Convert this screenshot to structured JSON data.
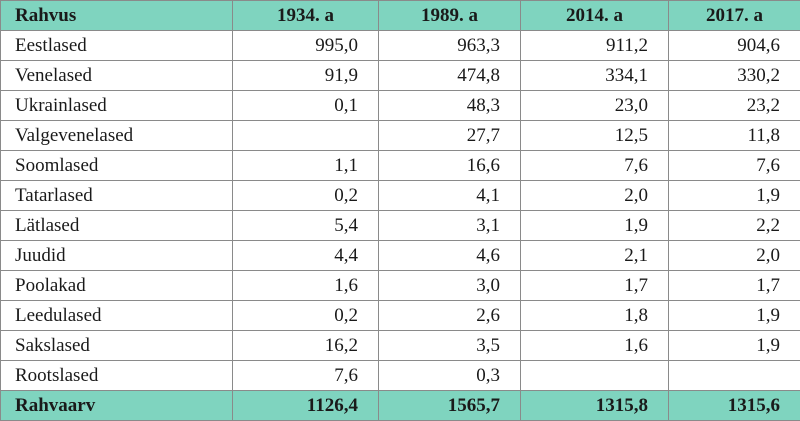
{
  "table": {
    "header": [
      "Rahvus",
      "1934. a",
      "1989. a",
      "2014. a",
      "2017. a"
    ],
    "rows": [
      [
        "Eestlased",
        "995,0",
        "963,3",
        "911,2",
        "904,6"
      ],
      [
        "Venelased",
        "91,9",
        "474,8",
        "334,1",
        "330,2"
      ],
      [
        "Ukrainlased",
        "0,1",
        "48,3",
        "23,0",
        "23,2"
      ],
      [
        "Valgevenelased",
        null,
        "27,7",
        "12,5",
        "11,8"
      ],
      [
        "Soomlased",
        "1,1",
        "16,6",
        "7,6",
        "7,6"
      ],
      [
        "Tatarlased",
        "0,2",
        "4,1",
        "2,0",
        "1,9"
      ],
      [
        "Lätlased",
        "5,4",
        "3,1",
        "1,9",
        "2,2"
      ],
      [
        "Juudid",
        "4,4",
        "4,6",
        "2,1",
        "2,0"
      ],
      [
        "Poolakad",
        "1,6",
        "3,0",
        "1,7",
        "1,7"
      ],
      [
        "Leedulased",
        "0,2",
        "2,6",
        "1,8",
        "1,9"
      ],
      [
        "Sakslased",
        "16,2",
        "3,5",
        "1,6",
        "1,9"
      ],
      [
        "Rootslased",
        "7,6",
        "0,3",
        null,
        null
      ]
    ],
    "footer": [
      "Rahvaarv",
      "1126,4",
      "1565,7",
      "1315,8",
      "1315,6"
    ]
  }
}
